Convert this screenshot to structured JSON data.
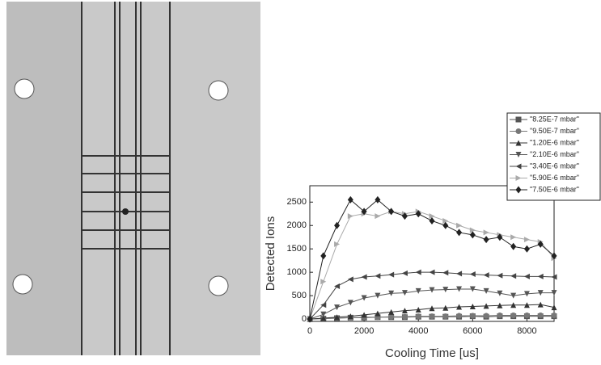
{
  "chart_data": {
    "type": "line",
    "xlabel": "Cooling Time [us]",
    "ylabel": "Detected Ions",
    "x": [
      0,
      500,
      1000,
      1500,
      2000,
      2500,
      3000,
      3500,
      4000,
      4500,
      5000,
      5500,
      6000,
      6500,
      7000,
      7500,
      8000,
      8500,
      9000
    ],
    "xlim": [
      0,
      9000
    ],
    "xticks": [
      0,
      2000,
      4000,
      6000,
      8000
    ],
    "ylim": [
      -50,
      2850
    ],
    "yticks": [
      0,
      500,
      1000,
      1500,
      2000,
      2500
    ],
    "legend": "top-right",
    "series": [
      {
        "name": "\"8.25E-7 mbar\"",
        "color": "#555555",
        "marker": "square",
        "values": [
          0,
          10,
          20,
          30,
          30,
          40,
          40,
          40,
          50,
          50,
          50,
          50,
          60,
          50,
          60,
          60,
          60,
          60,
          60
        ]
      },
      {
        "name": "\"9.50E-7 mbar\"",
        "color": "#777777",
        "marker": "circle",
        "values": [
          0,
          10,
          20,
          30,
          40,
          40,
          50,
          50,
          60,
          60,
          60,
          70,
          70,
          70,
          80,
          80,
          80,
          80,
          80
        ]
      },
      {
        "name": "\"1.20E-6 mbar\"",
        "color": "#333333",
        "marker": "triangle-up",
        "values": [
          0,
          20,
          40,
          60,
          90,
          120,
          150,
          180,
          200,
          230,
          240,
          260,
          270,
          280,
          290,
          300,
          300,
          310,
          250
        ]
      },
      {
        "name": "\"2.10E-6 mbar\"",
        "color": "#555555",
        "marker": "triangle-down",
        "values": [
          0,
          100,
          250,
          350,
          450,
          500,
          550,
          560,
          600,
          620,
          630,
          640,
          640,
          600,
          550,
          500,
          540,
          560,
          560
        ]
      },
      {
        "name": "\"3.40E-6 mbar\"",
        "color": "#444444",
        "marker": "triangle-left",
        "values": [
          0,
          300,
          700,
          850,
          900,
          920,
          950,
          980,
          1000,
          1000,
          990,
          970,
          960,
          940,
          930,
          920,
          910,
          910,
          900
        ]
      },
      {
        "name": "\"5.90E-6 mbar\"",
        "color": "#aaaaaa",
        "marker": "triangle-right",
        "values": [
          0,
          800,
          1600,
          2200,
          2250,
          2200,
          2300,
          2250,
          2300,
          2200,
          2100,
          2000,
          1900,
          1850,
          1800,
          1750,
          1700,
          1650,
          1300
        ]
      },
      {
        "name": "\"7.50E-6 mbar\"",
        "color": "#222222",
        "marker": "diamond",
        "values": [
          0,
          1350,
          2000,
          2550,
          2300,
          2550,
          2300,
          2200,
          2250,
          2100,
          2000,
          1850,
          1800,
          1700,
          1750,
          1550,
          1500,
          1600,
          1350
        ]
      }
    ]
  }
}
